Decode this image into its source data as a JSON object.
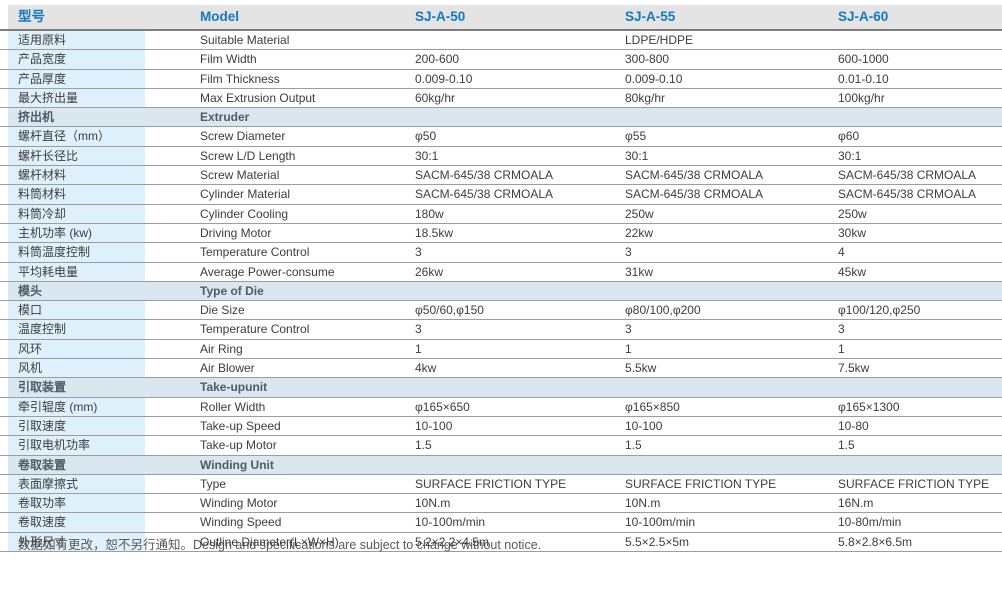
{
  "accent_color": "#1478be",
  "label_bg_color": "#def0fb",
  "section_bg_color": "#dbe7ef",
  "header_bg_color": "#e4e4e4",
  "table": {
    "header": {
      "cn": "型号",
      "en": "Model",
      "models": [
        "SJ-A-50",
        "SJ-A-55",
        "SJ-A-60"
      ]
    },
    "rows": [
      {
        "type": "data",
        "cn": "适用原料",
        "en": "Suitable Material",
        "values": [
          "",
          "LDPE/HDPE",
          ""
        ]
      },
      {
        "type": "data",
        "cn": "产品宽度",
        "en": "Film Width",
        "values": [
          "200-600",
          "300-800",
          "600-1000"
        ]
      },
      {
        "type": "data",
        "cn": "产品厚度",
        "en": "Film Thickness",
        "values": [
          "0.009-0.10",
          "0.009-0.10",
          "0.01-0.10"
        ]
      },
      {
        "type": "data",
        "cn": "最大挤出量",
        "en": "Max Extrusion Output",
        "values": [
          "60kg/hr",
          "80kg/hr",
          "100kg/hr"
        ]
      },
      {
        "type": "section",
        "cn": "挤出机",
        "en": "Extruder"
      },
      {
        "type": "data",
        "cn": "螺杆直径（mm）",
        "en": "Screw Diameter",
        "values": [
          "φ50",
          "φ55",
          "φ60"
        ]
      },
      {
        "type": "data",
        "cn": "螺杆长径比",
        "en": "Screw L/D Length",
        "values": [
          "30:1",
          "30:1",
          "30:1"
        ]
      },
      {
        "type": "data",
        "cn": "螺杆材料",
        "en": "Screw Material",
        "values": [
          "SACM-645/38 CRMOALA",
          "SACM-645/38 CRMOALA",
          "SACM-645/38 CRMOALA"
        ]
      },
      {
        "type": "data",
        "cn": "料筒材料",
        "en": "Cylinder Material",
        "values": [
          "SACM-645/38 CRMOALA",
          "SACM-645/38 CRMOALA",
          "SACM-645/38 CRMOALA"
        ]
      },
      {
        "type": "data",
        "cn": "料筒冷却",
        "en": "Cylinder Cooling",
        "values": [
          "180w",
          "250w",
          "250w"
        ]
      },
      {
        "type": "data",
        "cn": "主机功率 (kw)",
        "en": "Driving Motor",
        "values": [
          "18.5kw",
          "22kw",
          "30kw"
        ]
      },
      {
        "type": "data",
        "cn": "料筒温度控制",
        "en": "Temperature Control",
        "values": [
          "3",
          "3",
          "4"
        ]
      },
      {
        "type": "data",
        "cn": "平均耗电量",
        "en": "Average Power-consume",
        "values": [
          "26kw",
          "31kw",
          "45kw"
        ]
      },
      {
        "type": "section",
        "cn": "模头",
        "en": "Type of Die"
      },
      {
        "type": "data",
        "cn": "模口",
        "en": "Die Size",
        "values": [
          "φ50/60,φ150",
          "φ80/100,φ200",
          "φ100/120,φ250"
        ]
      },
      {
        "type": "data",
        "cn": "温度控制",
        "en": "Temperature Control",
        "values": [
          "3",
          "3",
          "3"
        ]
      },
      {
        "type": "data",
        "cn": "风环",
        "en": "Air Ring",
        "values": [
          "1",
          "1",
          "1"
        ]
      },
      {
        "type": "data",
        "cn": "风机",
        "en": "Air Blower",
        "values": [
          "4kw",
          "5.5kw",
          "7.5kw"
        ]
      },
      {
        "type": "section",
        "cn": "引取装置",
        "en": "Take-upunit"
      },
      {
        "type": "data",
        "cn": "牵引辊度 (mm)",
        "en": "Roller Width",
        "values": [
          "φ165×650",
          "φ165×850",
          "φ165×1300"
        ]
      },
      {
        "type": "data",
        "cn": "引取速度",
        "en": "Take-up Speed",
        "values": [
          "10-100",
          "10-100",
          "10-80"
        ]
      },
      {
        "type": "data",
        "cn": "引取电机功率",
        "en": "Take-up Motor",
        "values": [
          "1.5",
          "1.5",
          "1.5"
        ]
      },
      {
        "type": "section",
        "cn": "卷取装置",
        "en": "Winding Unit"
      },
      {
        "type": "data",
        "cn": "表面摩擦式",
        "en": "Type",
        "values": [
          "SURFACE FRICTION TYPE",
          "SURFACE FRICTION TYPE",
          "SURFACE FRICTION TYPE"
        ]
      },
      {
        "type": "data",
        "cn": "卷取功率",
        "en": "Winding Motor",
        "values": [
          "10N.m",
          "10N.m",
          "16N.m"
        ]
      },
      {
        "type": "data",
        "cn": "卷取速度",
        "en": "Winding Speed",
        "values": [
          "10-100m/min",
          "10-100m/min",
          "10-80m/min"
        ]
      },
      {
        "type": "data",
        "cn": "外形尺寸",
        "en": "Outline Diameter(L×W×H)",
        "values": [
          "5.2×2.2×4.5m",
          "5.5×2.5×5m",
          "5.8×2.8×6.5m"
        ]
      }
    ]
  },
  "footer": {
    "note": "数据如有更改，恕不另行通知。Design and specifications are subject to change without notice."
  }
}
